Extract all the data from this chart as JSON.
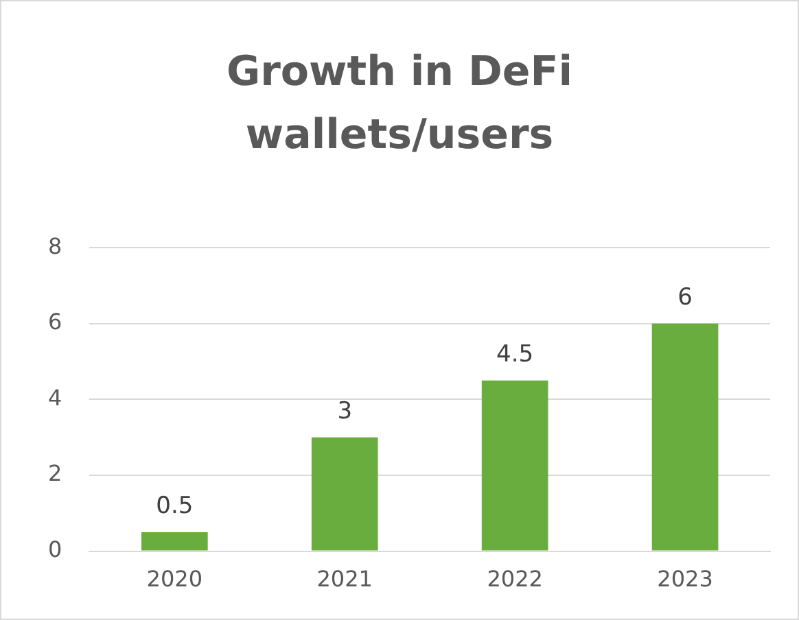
{
  "chart_data": {
    "type": "bar",
    "title": "Growth in DeFi wallets/users",
    "categories": [
      "2020",
      "2021",
      "2022",
      "2023"
    ],
    "values": [
      0.5,
      3,
      4.5,
      6
    ],
    "color": "#6aad3f",
    "ylim": [
      0,
      8
    ],
    "yticks": [
      0,
      2,
      4,
      6,
      8
    ],
    "grid": "y",
    "data_labels": true
  }
}
